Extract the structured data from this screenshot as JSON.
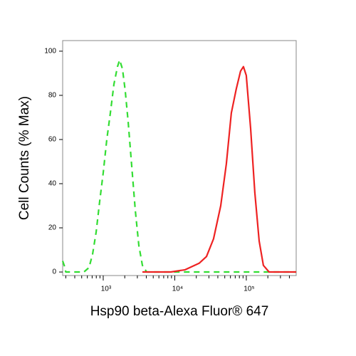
{
  "chart_data": {
    "type": "line",
    "xlabel": "Hsp90 beta-Alexa Fluor® 647",
    "ylabel": "Cell Counts (% Max)",
    "xscale": "log",
    "xlim": [
      271,
      498000
    ],
    "ylim": [
      -1.6,
      104.8
    ],
    "xticks": [
      {
        "value": 1000,
        "label": "10³"
      },
      {
        "value": 10000,
        "label": "10⁴"
      },
      {
        "value": 100000,
        "label": "10⁵"
      }
    ],
    "xminorticks": [
      300,
      400,
      500,
      600,
      700,
      800,
      900,
      2000,
      3000,
      4000,
      5000,
      6000,
      7000,
      8000,
      9000,
      20000,
      30000,
      40000,
      50000,
      60000,
      70000,
      80000,
      90000,
      200000,
      300000,
      400000
    ],
    "yticks": [
      0,
      20,
      40,
      60,
      80,
      100
    ],
    "series": [
      {
        "color": "#33dd33",
        "dash": true,
        "x": [
          271,
          285,
          300,
          538,
          632,
          710,
          795,
          892,
          1000,
          1121,
          1257,
          1410,
          1581,
          1694,
          1857,
          2033,
          2229,
          2500,
          2805,
          3145,
          3525,
          4046,
          498000
        ],
        "values": [
          5,
          3,
          0,
          0,
          2,
          8,
          18,
          32,
          45,
          60,
          72,
          85,
          93,
          96,
          92,
          82,
          68,
          48,
          28,
          12,
          3,
          0,
          0
        ]
      },
      {
        "color": "#ee2222",
        "dash": false,
        "x": [
          3525,
          8810,
          13930,
          22030,
          27730,
          34840,
          43850,
          52640,
          61780,
          72570,
          83200,
          91240,
          100000,
          114800,
          131600,
          151100,
          173300,
          208100,
          498000
        ],
        "values": [
          0,
          0,
          1,
          4,
          7,
          15,
          30,
          49,
          72,
          83,
          91,
          93,
          89,
          65,
          36,
          14,
          3,
          0,
          0
        ]
      }
    ]
  }
}
